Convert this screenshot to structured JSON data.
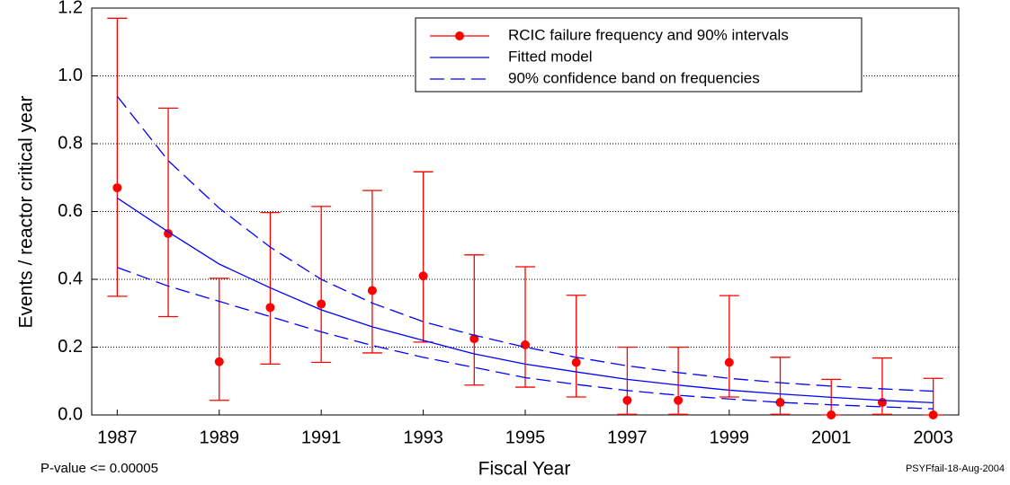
{
  "chart_data": {
    "type": "line",
    "x_label": "Fiscal Year",
    "y_label": "Events / reactor critical year",
    "annotations": [
      "P-value <= 0.00005",
      "PSYFfail-18-Aug-2004"
    ],
    "x": [
      1987,
      1988,
      1989,
      1990,
      1991,
      1992,
      1993,
      1994,
      1995,
      1996,
      1997,
      1998,
      1999,
      2000,
      2001,
      2002,
      2003
    ],
    "xlim": [
      1986.5,
      2003.5
    ],
    "xticks": [
      1987,
      1989,
      1991,
      1993,
      1995,
      1997,
      1999,
      2001,
      2003
    ],
    "ylim": [
      0,
      1.2
    ],
    "yticks": [
      {
        "value": 0,
        "label": "0.0"
      },
      0.2,
      0.4,
      0.6,
      0.8,
      {
        "value": 1,
        "label": "1.0"
      },
      1.2
    ],
    "grid": true,
    "legend": "top-right",
    "series": [
      {
        "name": "RCIC failure frequency and 90% intervals",
        "color": "#ff0000",
        "style": "points-with-intervals",
        "values": [
          0.67,
          0.535,
          0.157,
          0.317,
          0.327,
          0.367,
          0.41,
          0.225,
          0.207,
          0.155,
          0.043,
          0.043,
          0.155,
          0.037,
          0,
          0.037,
          0
        ],
        "lower": [
          0.35,
          0.29,
          0.043,
          0.15,
          0.155,
          0.183,
          0.215,
          0.088,
          0.082,
          0.053,
          0.002,
          0.002,
          0.053,
          0.002,
          0,
          0.002,
          0
        ],
        "upper": [
          1.17,
          0.905,
          0.403,
          0.597,
          0.615,
          0.662,
          0.717,
          0.472,
          0.437,
          0.353,
          0.2,
          0.2,
          0.352,
          0.17,
          0.105,
          0.168,
          0.108
        ]
      },
      {
        "name": "Fitted model",
        "color": "#0000ff",
        "style": "solid",
        "values": [
          0.64,
          0.54,
          0.445,
          0.375,
          0.31,
          0.26,
          0.22,
          0.18,
          0.15,
          0.127,
          0.105,
          0.088,
          0.073,
          0.062,
          0.052,
          0.043,
          0.036
        ]
      },
      {
        "name": "90% confidence band on frequencies",
        "color": "#0000ff",
        "style": "dashed-band",
        "upper": [
          0.94,
          0.75,
          0.61,
          0.495,
          0.4,
          0.33,
          0.275,
          0.235,
          0.2,
          0.17,
          0.145,
          0.125,
          0.108,
          0.095,
          0.085,
          0.077,
          0.07
        ],
        "lower": [
          0.435,
          0.38,
          0.335,
          0.29,
          0.245,
          0.205,
          0.17,
          0.14,
          0.11,
          0.09,
          0.072,
          0.058,
          0.047,
          0.037,
          0.03,
          0.024,
          0.018
        ]
      }
    ]
  }
}
